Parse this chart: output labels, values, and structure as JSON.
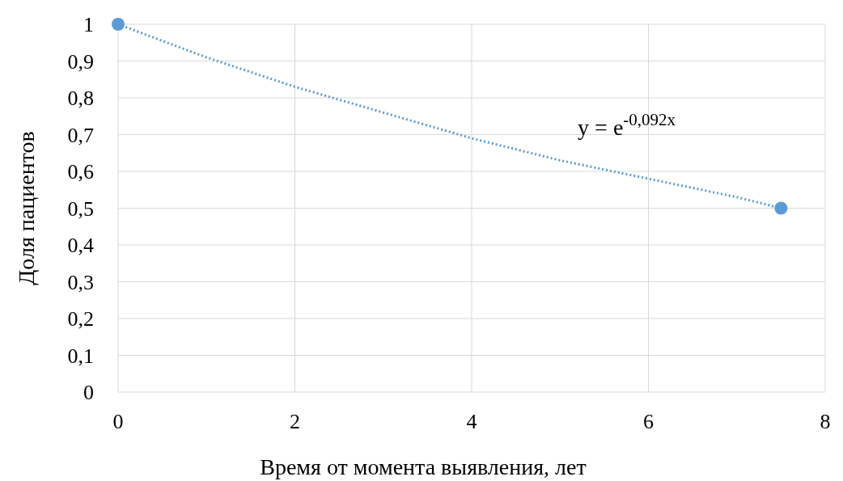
{
  "chart_data": {
    "type": "scatter",
    "xlabel": "Время от момента выявления, лет",
    "ylabel": "Доля пациентов",
    "xlim": [
      0,
      8
    ],
    "xticks": [
      0,
      2,
      4,
      6,
      8
    ],
    "ylim": [
      0,
      1
    ],
    "yticks": [
      0,
      {
        "value": 0.1,
        "label": "0,1"
      },
      {
        "value": 0.2,
        "label": "0,2"
      },
      {
        "value": 0.3,
        "label": "0,3"
      },
      {
        "value": 0.4,
        "label": "0,4"
      },
      {
        "value": 0.5,
        "label": "0,5"
      },
      {
        "value": 0.6,
        "label": "0,6"
      },
      {
        "value": 0.7,
        "label": "0,7"
      },
      {
        "value": 0.8,
        "label": "0,8"
      },
      {
        "value": 0.9,
        "label": "0,9"
      },
      1
    ],
    "grid": true,
    "series": [
      {
        "type": "line",
        "color": "#5b9bd5",
        "marker": "none",
        "line_style": "dotted",
        "x": [
          0,
          1,
          2,
          3,
          4,
          5,
          6,
          7,
          7.5
        ],
        "values": [
          1,
          0.91,
          0.83,
          0.76,
          0.69,
          0.63,
          0.58,
          0.53,
          0.5
        ]
      },
      {
        "color": "#5b9bd5",
        "marker": "circle",
        "x": [
          0,
          7.5
        ],
        "values": [
          1,
          0.5
        ]
      }
    ],
    "annotations": [
      "y = e$^{-0,092x}$"
    ]
  }
}
